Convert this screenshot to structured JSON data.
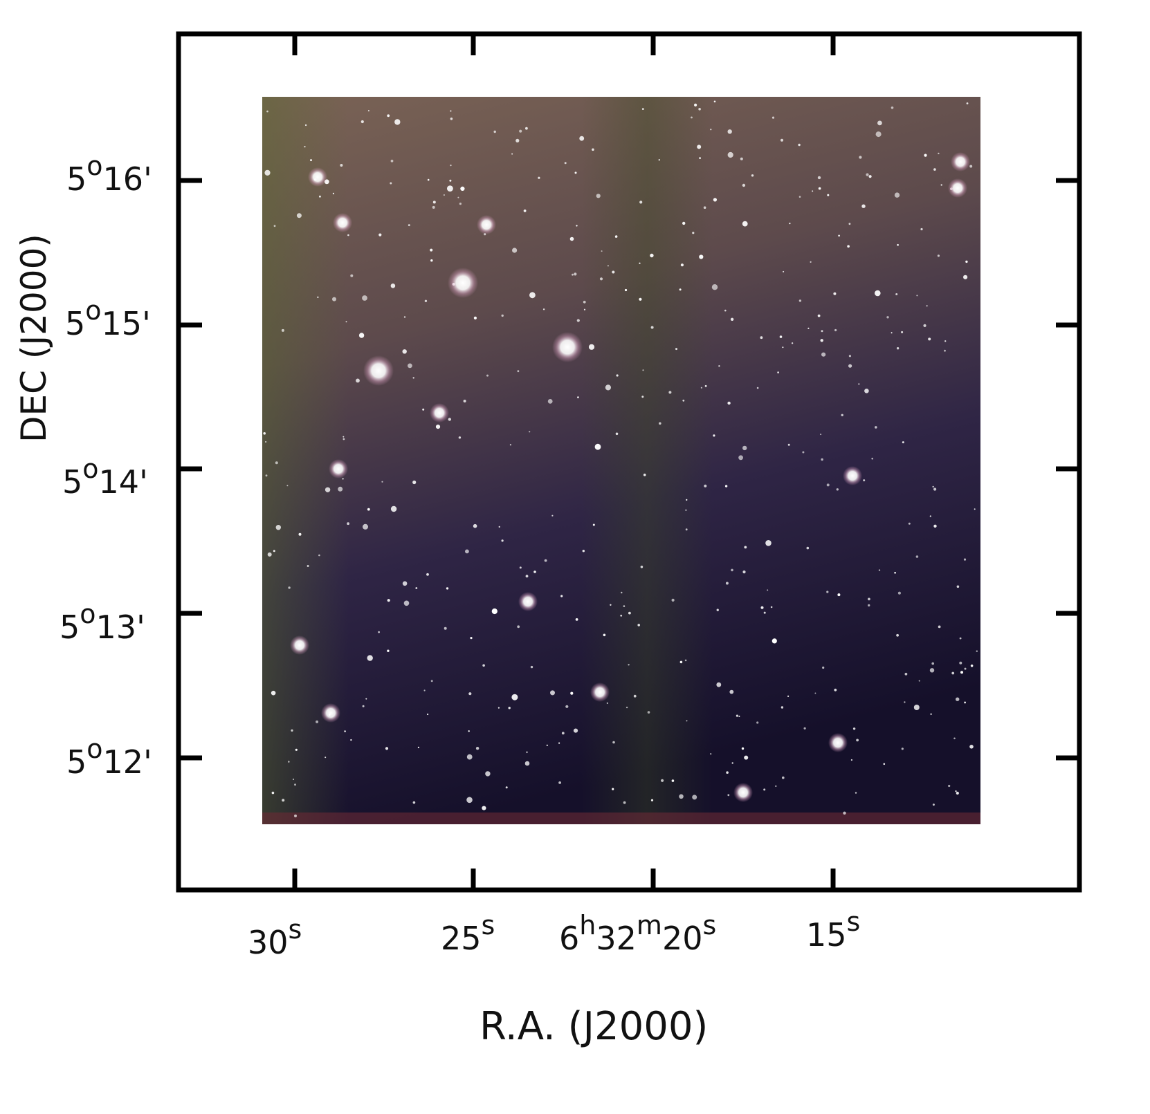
{
  "axes": {
    "xlabel": "R.A. (J2000)",
    "ylabel": "DEC (J2000)"
  },
  "ra_ticks": [
    {
      "main": "30",
      "sup1": "s",
      "pre": "",
      "presup": "",
      "mid": "",
      "midsup": ""
    },
    {
      "main": "25",
      "sup1": "s",
      "pre": "",
      "presup": "",
      "mid": "",
      "midsup": ""
    },
    {
      "main": "20",
      "sup1": "s",
      "pre": "6",
      "presup": "h",
      "mid": "32",
      "midsup": "m"
    },
    {
      "main": "15",
      "sup1": "s",
      "pre": "",
      "presup": "",
      "mid": "",
      "midsup": ""
    }
  ],
  "dec_ticks": [
    {
      "deg": "5",
      "degsym": "o",
      "min": "16'"
    },
    {
      "deg": "5",
      "degsym": "o",
      "min": "15'"
    },
    {
      "deg": "5",
      "degsym": "o",
      "min": "14'"
    },
    {
      "deg": "5",
      "degsym": "o",
      "min": "13'"
    },
    {
      "deg": "5",
      "degsym": "o",
      "min": "12'"
    }
  ],
  "colors": {
    "frame": "#000000",
    "sky_top": "#6b5a4e",
    "sky_bottom": "#1a1030",
    "star": "#ffffff"
  }
}
